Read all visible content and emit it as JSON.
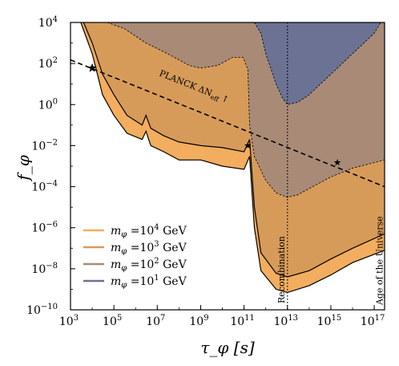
{
  "chart_data": {
    "type": "area",
    "xscale": "log",
    "yscale": "log",
    "xlim": [
      1000,
      300000000000000000
    ],
    "ylim": [
      1e-10,
      10000
    ],
    "xlabel": "τ_φ  [s]",
    "ylabel": "f_φ",
    "xticks": [
      {
        "exp": "3",
        "v": 1000
      },
      {
        "exp": "5",
        "v": 100000
      },
      {
        "exp": "7",
        "v": 10000000
      },
      {
        "exp": "9",
        "v": 1000000000
      },
      {
        "exp": "11",
        "v": 100000000000
      },
      {
        "exp": "13",
        "v": 10000000000000
      },
      {
        "exp": "15",
        "v": 1000000000000000
      },
      {
        "exp": "17",
        "v": 100000000000000000
      }
    ],
    "yticks": [
      {
        "exp": "−10",
        "v": 1e-10
      },
      {
        "exp": "−8",
        "v": 1e-08
      },
      {
        "exp": "−6",
        "v": 1e-06
      },
      {
        "exp": "−4",
        "v": 0.0001
      },
      {
        "exp": "−2",
        "v": 0.01
      },
      {
        "exp": "0",
        "v": 1
      },
      {
        "exp": "2",
        "v": 100
      },
      {
        "exp": "4",
        "v": 10000
      }
    ],
    "tick_base": "10",
    "series": [
      {
        "name": "m_φ =10^4 GeV",
        "legend_pre": "m",
        "legend_sub": "φ",
        "legend_mid": " =10",
        "legend_sup": "4",
        "legend_post": " GeV",
        "color": "#f2ad5e",
        "boundary_style": "solid",
        "lower_boundary": [
          [
            3000,
            10000
          ],
          [
            10000,
            300
          ],
          [
            30000,
            3
          ],
          [
            100000,
            0.3
          ],
          [
            400000,
            0.04
          ],
          [
            2000000,
            0.02
          ],
          [
            3000000,
            0.05
          ],
          [
            5000000,
            0.01
          ],
          [
            20000000,
            0.005
          ],
          [
            100000000,
            0.002
          ],
          [
            1000000000,
            0.002
          ],
          [
            10000000000,
            0.001
          ],
          [
            100000000000,
            0.0007
          ],
          [
            180000000000,
            0.003
          ],
          [
            300000000000,
            1e-06
          ],
          [
            600000000000,
            8e-09
          ],
          [
            3000000000000,
            1e-09
          ],
          [
            10000000000000,
            7e-10
          ],
          [
            100000000000000,
            1.5e-09
          ],
          [
            1000000000000000,
            5e-09
          ],
          [
            10000000000000000,
            2e-08
          ],
          [
            300000000000000000,
            8e-08
          ]
        ]
      },
      {
        "name": "m_φ =10^3 GeV",
        "legend_pre": "m",
        "legend_sub": "φ",
        "legend_mid": " =10",
        "legend_sup": "3",
        "legend_post": " GeV",
        "color": "#d79b59",
        "boundary_style": "solid",
        "lower_boundary": [
          [
            4000,
            10000
          ],
          [
            10000,
            1000
          ],
          [
            30000,
            30
          ],
          [
            100000,
            3
          ],
          [
            400000,
            0.3
          ],
          [
            2000000,
            0.1
          ],
          [
            3000000,
            0.3
          ],
          [
            5000000,
            0.07
          ],
          [
            20000000,
            0.03
          ],
          [
            100000000,
            0.015
          ],
          [
            1000000000,
            0.01
          ],
          [
            10000000000,
            0.008
          ],
          [
            100000000000,
            0.005
          ],
          [
            180000000000,
            0.02
          ],
          [
            300000000000,
            1e-05
          ],
          [
            600000000000,
            6e-08
          ],
          [
            3000000000000,
            6e-09
          ],
          [
            10000000000000,
            4e-09
          ],
          [
            100000000000000,
            8e-09
          ],
          [
            1000000000000000,
            3e-08
          ],
          [
            10000000000000000,
            1e-07
          ],
          [
            300000000000000000,
            5e-07
          ]
        ]
      },
      {
        "name": "m_φ =10^2 GeV",
        "legend_pre": "m",
        "legend_sub": "φ",
        "legend_mid": " =10",
        "legend_sup": "2",
        "legend_post": " GeV",
        "color": "#a88a76",
        "boundary_style": "dashed",
        "lower_boundary": [
          [
            50000,
            10000
          ],
          [
            300000,
            5000
          ],
          [
            3000000,
            1000
          ],
          [
            30000000,
            300
          ],
          [
            300000000,
            80
          ],
          [
            1000000000,
            60
          ],
          [
            6000000000,
            80
          ],
          [
            30000000000,
            200
          ],
          [
            90000000000,
            200
          ],
          [
            150000000000,
            50
          ],
          [
            180000000000,
            0.1
          ],
          [
            300000000000,
            0.003
          ],
          [
            1000000000000,
            0.0002
          ],
          [
            3000000000000,
            5e-05
          ],
          [
            10000000000000,
            3e-05
          ],
          [
            30000000000000,
            4e-05
          ],
          [
            100000000000000,
            8e-05
          ],
          [
            1000000000000000,
            0.0003
          ],
          [
            10000000000000000,
            0.0008
          ],
          [
            300000000000000000,
            0.002
          ]
        ]
      },
      {
        "name": "m_φ =10^1 GeV",
        "legend_pre": "m",
        "legend_sub": "φ",
        "legend_mid": " =10",
        "legend_sup": "1",
        "legend_post": " GeV",
        "color": "#6b7293",
        "boundary_style": "dashed",
        "lower_boundary": [
          [
            300000000000,
            10000
          ],
          [
            600000000000,
            3000
          ],
          [
            1000000000000,
            300
          ],
          [
            3000000000000,
            10
          ],
          [
            6000000000000,
            2
          ],
          [
            10000000000000,
            1
          ],
          [
            30000000000000,
            1.3
          ],
          [
            100000000000000,
            3
          ],
          [
            1000000000000000,
            30
          ],
          [
            10000000000000000,
            300
          ],
          [
            100000000000000000,
            3000
          ],
          [
            200000000000000000,
            10000
          ]
        ]
      }
    ],
    "planck_line": {
      "label": "PLANCK ΔN",
      "label_sub": "eff",
      "label_arrow": "↑",
      "points": [
        [
          1000,
          150
        ],
        [
          300000000000000000,
          0.0001
        ]
      ],
      "markers": [
        [
          10000,
          60
        ],
        [
          150000000000,
          0.01
        ],
        [
          2000000000000000,
          0.0015
        ]
      ]
    },
    "recombination": {
      "label": "Recombination",
      "x": 10000000000000
    },
    "age_universe": {
      "label": "Age of the Universe",
      "x": 400000000000000000
    },
    "legend_position": "lower-left"
  }
}
